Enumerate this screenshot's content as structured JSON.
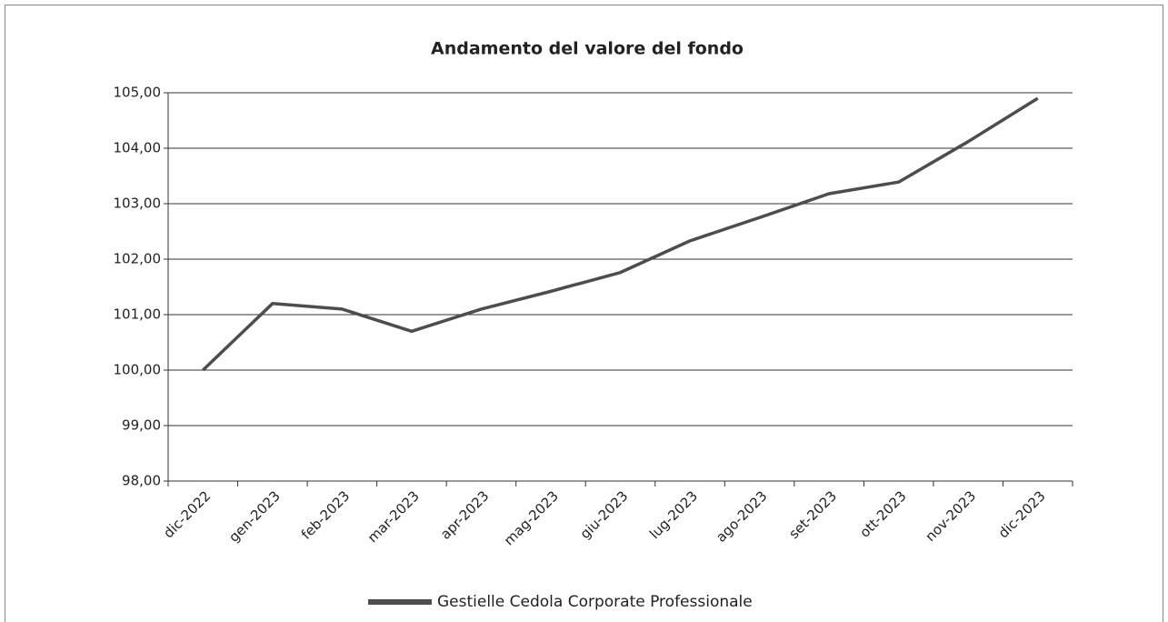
{
  "chart_data": {
    "type": "line",
    "title": "Andamento del valore del fondo",
    "categories": [
      "dic-2022",
      "gen-2023",
      "feb-2023",
      "mar-2023",
      "apr-2023",
      "mag-2023",
      "giu-2023",
      "lug-2023",
      "ago-2023",
      "set-2023",
      "ott-2023",
      "nov-2023",
      "dic-2023"
    ],
    "series": [
      {
        "name": "Gestielle Cedola Corporate Professionale",
        "color": "#4d4d4d",
        "values": [
          100.0,
          101.2,
          101.1,
          100.7,
          101.1,
          101.42,
          101.76,
          102.33,
          102.75,
          103.18,
          103.39,
          104.12,
          104.9
        ]
      }
    ],
    "ylim": [
      98,
      105
    ],
    "yticks": [
      {
        "value": 98,
        "label": "98,00"
      },
      {
        "value": 99,
        "label": "99,00"
      },
      {
        "value": 100,
        "label": "100,00"
      },
      {
        "value": 101,
        "label": "101,00"
      },
      {
        "value": 102,
        "label": "102,00"
      },
      {
        "value": 103,
        "label": "103,00"
      },
      {
        "value": 104,
        "label": "104,00"
      },
      {
        "value": 105,
        "label": "105,00"
      }
    ],
    "grid": true,
    "legend": "bottom"
  }
}
